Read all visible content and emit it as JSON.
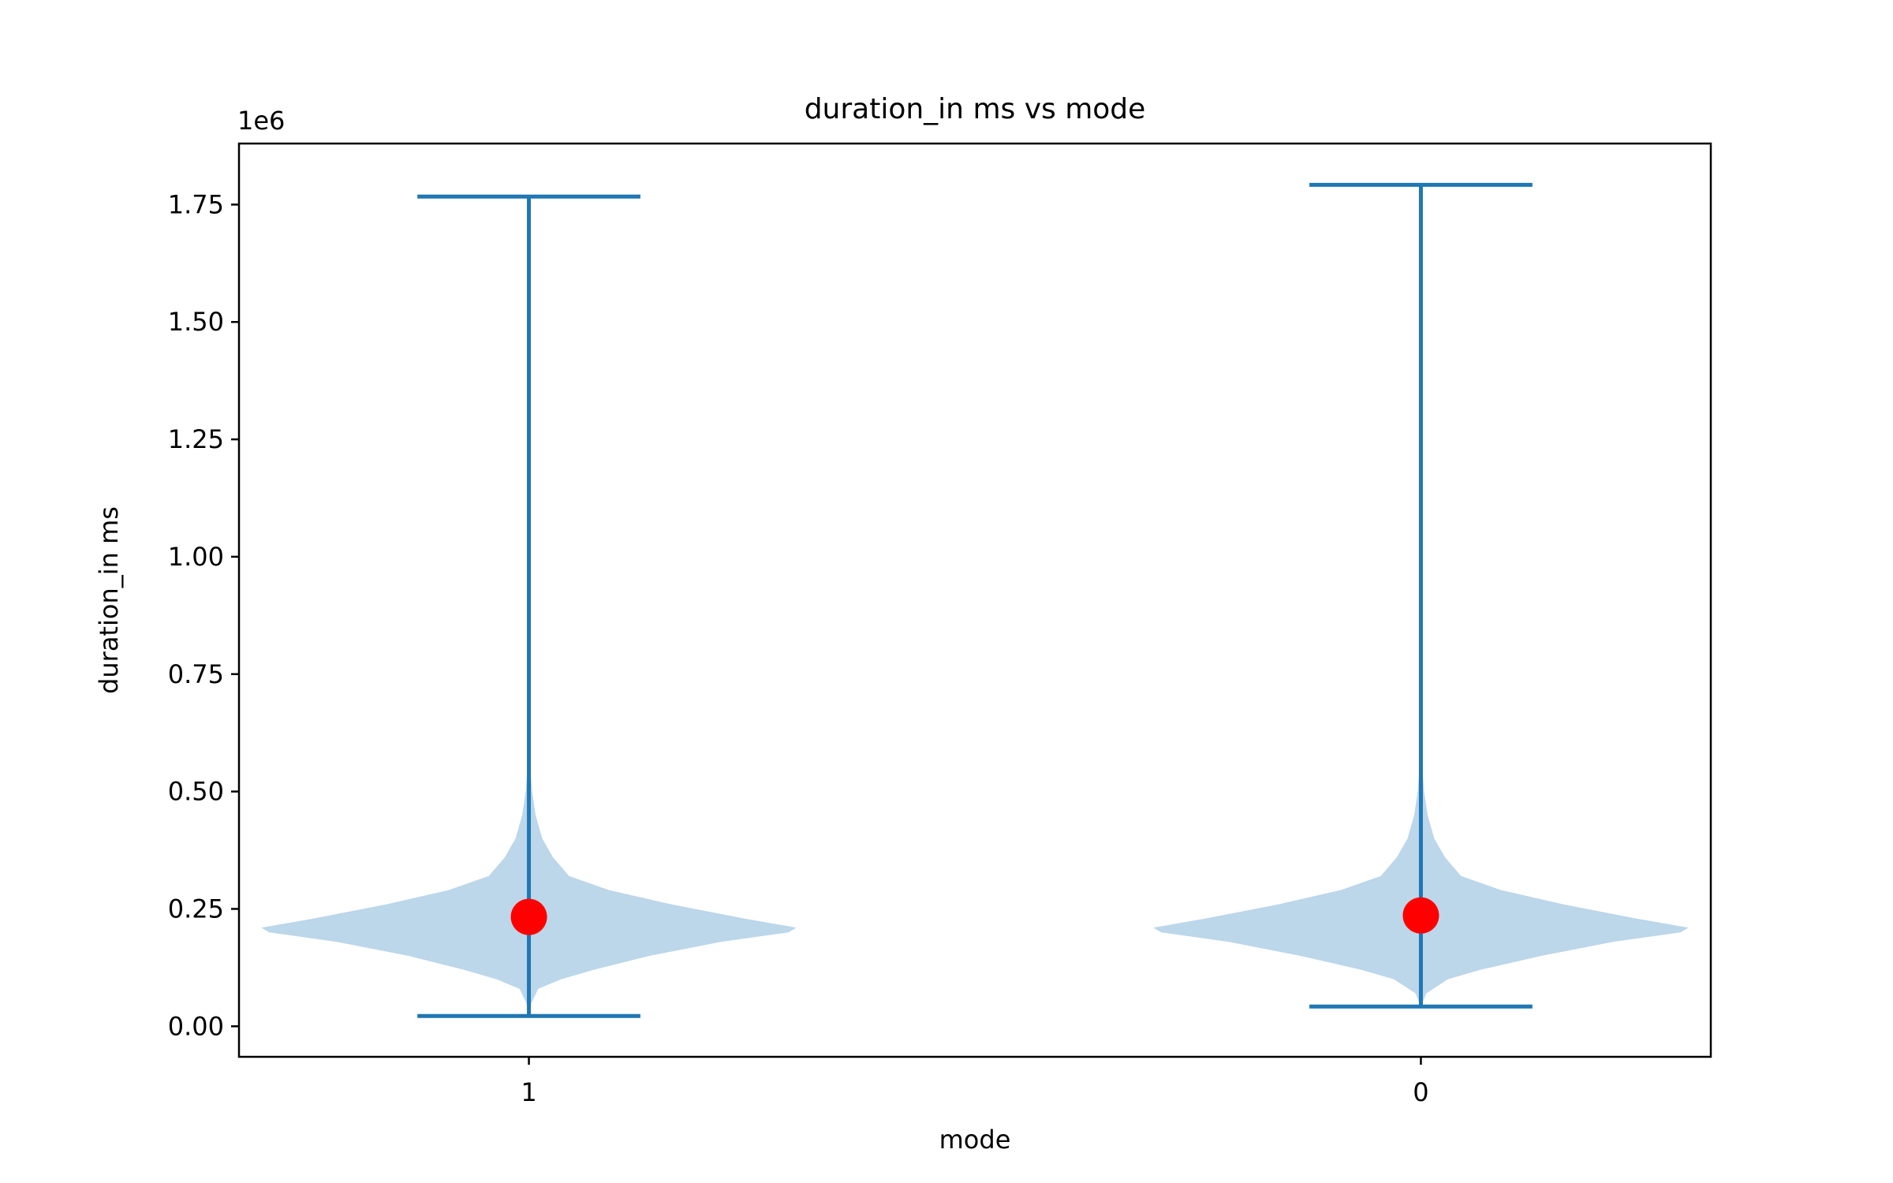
{
  "chart_data": {
    "type": "violin",
    "title": "duration_in ms vs mode",
    "xlabel": "mode",
    "ylabel": "duration_in ms",
    "y_offset_label": "1e6",
    "categories": [
      "1",
      "0"
    ],
    "ylim": [
      -0.065,
      1.88
    ],
    "yticks": [
      0.0,
      0.25,
      0.5,
      0.75,
      1.0,
      1.25,
      1.5,
      1.75
    ],
    "ytick_labels": [
      "0.00",
      "0.25",
      "0.50",
      "0.75",
      "1.00",
      "1.25",
      "1.50",
      "1.75"
    ],
    "scale": 1000000,
    "grid": false,
    "colors": {
      "violin_fill": "#bcd6ea",
      "whisker": "#1f77b4",
      "mean_marker": "#ff0000",
      "axes": "#000000"
    },
    "violins": [
      {
        "category": "1",
        "min": 0.022,
        "max": 1.767,
        "mean": 0.233,
        "density": [
          [
            0.022,
            0.0
          ],
          [
            0.05,
            0.01
          ],
          [
            0.08,
            0.035
          ],
          [
            0.1,
            0.12
          ],
          [
            0.12,
            0.24
          ],
          [
            0.15,
            0.45
          ],
          [
            0.18,
            0.72
          ],
          [
            0.2,
            0.97
          ],
          [
            0.21,
            1.0
          ],
          [
            0.23,
            0.8
          ],
          [
            0.26,
            0.53
          ],
          [
            0.29,
            0.3
          ],
          [
            0.32,
            0.15
          ],
          [
            0.36,
            0.09
          ],
          [
            0.4,
            0.05
          ],
          [
            0.45,
            0.025
          ],
          [
            0.5,
            0.012
          ],
          [
            0.56,
            0.004
          ],
          [
            0.65,
            0.0
          ]
        ]
      },
      {
        "category": "0",
        "min": 0.042,
        "max": 1.792,
        "mean": 0.236,
        "density": [
          [
            0.042,
            0.0
          ],
          [
            0.07,
            0.02
          ],
          [
            0.1,
            0.1
          ],
          [
            0.12,
            0.22
          ],
          [
            0.15,
            0.45
          ],
          [
            0.18,
            0.72
          ],
          [
            0.2,
            0.97
          ],
          [
            0.21,
            1.0
          ],
          [
            0.23,
            0.8
          ],
          [
            0.26,
            0.53
          ],
          [
            0.29,
            0.3
          ],
          [
            0.32,
            0.15
          ],
          [
            0.36,
            0.09
          ],
          [
            0.4,
            0.05
          ],
          [
            0.45,
            0.025
          ],
          [
            0.5,
            0.012
          ],
          [
            0.56,
            0.004
          ],
          [
            0.65,
            0.0
          ]
        ]
      }
    ]
  }
}
